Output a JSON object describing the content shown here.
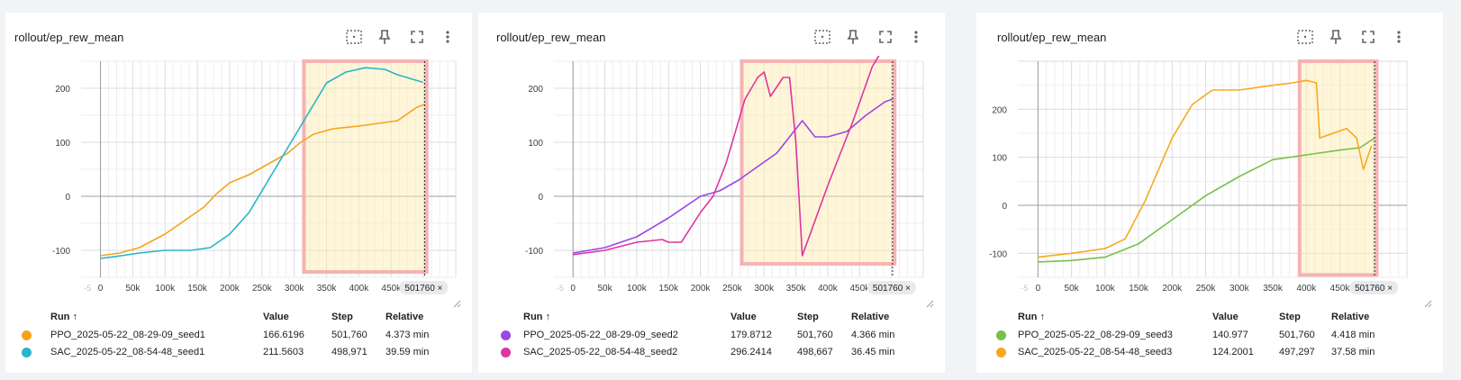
{
  "columns": {
    "run": "Run ↑",
    "value": "Value",
    "step": "Step",
    "relative": "Relative"
  },
  "cards": [
    {
      "title": "rollout/ep_rew_mean",
      "cursor_label": "501760 ×",
      "runs": [
        {
          "name": "PPO_2025-05-22_08-29-09_seed1",
          "value": "166.6196",
          "step": "501,760",
          "relative": "4.373 min",
          "color": "#f4a41c"
        },
        {
          "name": "SAC_2025-05-22_08-54-48_seed1",
          "value": "211.5603",
          "step": "498,971",
          "relative": "39.59 min",
          "color": "#28b5c9"
        }
      ]
    },
    {
      "title": "rollout/ep_rew_mean",
      "cursor_label": "501760 ×",
      "runs": [
        {
          "name": "PPO_2025-05-22_08-29-09_seed2",
          "value": "179.8712",
          "step": "501,760",
          "relative": "4.366 min",
          "color": "#9b46e5"
        },
        {
          "name": "SAC_2025-05-22_08-54-48_seed2",
          "value": "296.2414",
          "step": "498,667",
          "relative": "36.45 min",
          "color": "#e0359f"
        }
      ]
    },
    {
      "title": "rollout/ep_rew_mean",
      "cursor_label": "501760 ×",
      "runs": [
        {
          "name": "PPO_2025-05-22_08-29-09_seed3",
          "value": "140.977",
          "step": "501,760",
          "relative": "4.418 min",
          "color": "#79bf48"
        },
        {
          "name": "SAC_2025-05-22_08-54-48_seed3",
          "value": "124.2001",
          "step": "497,297",
          "relative": "37.58 min",
          "color": "#f8a81e"
        }
      ]
    }
  ],
  "chart_data": [
    {
      "type": "line",
      "xlim": [
        -30000,
        550000
      ],
      "ylim": [
        -150,
        250
      ],
      "x_ticks": [
        0,
        50000,
        100000,
        150000,
        200000,
        250000,
        300000,
        350000,
        400000,
        450000
      ],
      "x_tick_labels": [
        "0",
        "50k",
        "100k",
        "150k",
        "200k",
        "250k",
        "300k",
        "350k",
        "400k",
        "450k"
      ],
      "y_ticks": [
        -100,
        0,
        100,
        200
      ],
      "y_tick_labels": [
        "-100",
        "0",
        "100",
        "200"
      ],
      "x_left_label": "-5",
      "grid": true,
      "cursor_x": 501760,
      "highlight": {
        "x": [
          315000,
          505000
        ],
        "y": [
          -140,
          250
        ]
      },
      "series": [
        {
          "name": "PPO_2025-05-22_08-29-09_seed1",
          "color": "#f4a41c",
          "x": [
            0,
            30000,
            60000,
            100000,
            130000,
            160000,
            180000,
            200000,
            230000,
            260000,
            290000,
            310000,
            330000,
            360000,
            400000,
            430000,
            460000,
            490000,
            501760
          ],
          "y": [
            -110,
            -105,
            -95,
            -70,
            -45,
            -20,
            5,
            25,
            40,
            60,
            80,
            100,
            115,
            125,
            130,
            135,
            140,
            165,
            170
          ]
        },
        {
          "name": "SAC_2025-05-22_08-54-48_seed1",
          "color": "#28b5c9",
          "x": [
            0,
            20000,
            60000,
            100000,
            140000,
            170000,
            200000,
            230000,
            260000,
            290000,
            320000,
            350000,
            380000,
            410000,
            440000,
            460000,
            498971
          ],
          "y": [
            -115,
            -112,
            -105,
            -100,
            -100,
            -95,
            -70,
            -30,
            30,
            90,
            150,
            210,
            230,
            238,
            235,
            225,
            211
          ]
        }
      ]
    },
    {
      "type": "line",
      "xlim": [
        -30000,
        550000
      ],
      "ylim": [
        -150,
        250
      ],
      "x_ticks": [
        0,
        50000,
        100000,
        150000,
        200000,
        250000,
        300000,
        350000,
        400000,
        450000
      ],
      "x_tick_labels": [
        "0",
        "50k",
        "100k",
        "150k",
        "200k",
        "250k",
        "300k",
        "350k",
        "400k",
        "450k"
      ],
      "y_ticks": [
        -100,
        0,
        100,
        200
      ],
      "y_tick_labels": [
        "-100",
        "0",
        "100",
        "200"
      ],
      "x_left_label": "-5",
      "grid": true,
      "cursor_x": 501760,
      "highlight": {
        "x": [
          265000,
          505000
        ],
        "y": [
          -125,
          250
        ]
      },
      "series": [
        {
          "name": "PPO_2025-05-22_08-29-09_seed2",
          "color": "#9b46e5",
          "x": [
            0,
            50000,
            100000,
            150000,
            200000,
            230000,
            260000,
            290000,
            320000,
            340000,
            360000,
            380000,
            400000,
            430000,
            460000,
            490000,
            501760
          ],
          "y": [
            -105,
            -95,
            -75,
            -40,
            0,
            10,
            30,
            55,
            80,
            110,
            140,
            110,
            110,
            120,
            150,
            175,
            180
          ]
        },
        {
          "name": "SAC_2025-05-22_08-54-48_seed2",
          "color": "#e0359f",
          "x": [
            0,
            50000,
            100000,
            140000,
            150000,
            170000,
            200000,
            220000,
            240000,
            270000,
            290000,
            300000,
            310000,
            330000,
            340000,
            350000,
            360000,
            400000,
            440000,
            470000,
            498667
          ],
          "y": [
            -108,
            -100,
            -85,
            -80,
            -85,
            -85,
            -30,
            0,
            60,
            180,
            220,
            230,
            185,
            220,
            220,
            100,
            -110,
            20,
            140,
            240,
            296
          ]
        }
      ]
    },
    {
      "type": "line",
      "xlim": [
        -30000,
        550000
      ],
      "ylim": [
        -150,
        300
      ],
      "x_ticks": [
        0,
        50000,
        100000,
        150000,
        200000,
        250000,
        300000,
        350000,
        400000,
        450000
      ],
      "x_tick_labels": [
        "0",
        "50k",
        "100k",
        "150k",
        "200k",
        "250k",
        "300k",
        "350k",
        "400k",
        "450k"
      ],
      "y_ticks": [
        -100,
        0,
        100,
        200
      ],
      "y_tick_labels": [
        "-100",
        "0",
        "100",
        "200"
      ],
      "x_left_label": "-5",
      "grid": true,
      "cursor_x": 501760,
      "highlight": {
        "x": [
          390000,
          505000
        ],
        "y": [
          -145,
          300
        ]
      },
      "series": [
        {
          "name": "PPO_2025-05-22_08-29-09_seed3",
          "color": "#79bf48",
          "x": [
            0,
            50000,
            100000,
            150000,
            200000,
            250000,
            300000,
            350000,
            400000,
            450000,
            480000,
            501760
          ],
          "y": [
            -118,
            -115,
            -108,
            -80,
            -30,
            20,
            60,
            95,
            105,
            115,
            120,
            140
          ]
        },
        {
          "name": "SAC_2025-05-22_08-54-48_seed3",
          "color": "#f8a81e",
          "x": [
            0,
            50000,
            100000,
            130000,
            160000,
            200000,
            230000,
            260000,
            300000,
            350000,
            380000,
            400000,
            415000,
            420000,
            440000,
            460000,
            475000,
            485000,
            497297
          ],
          "y": [
            -108,
            -100,
            -90,
            -70,
            10,
            140,
            210,
            240,
            240,
            250,
            255,
            260,
            255,
            140,
            150,
            160,
            140,
            75,
            124
          ]
        }
      ]
    }
  ]
}
